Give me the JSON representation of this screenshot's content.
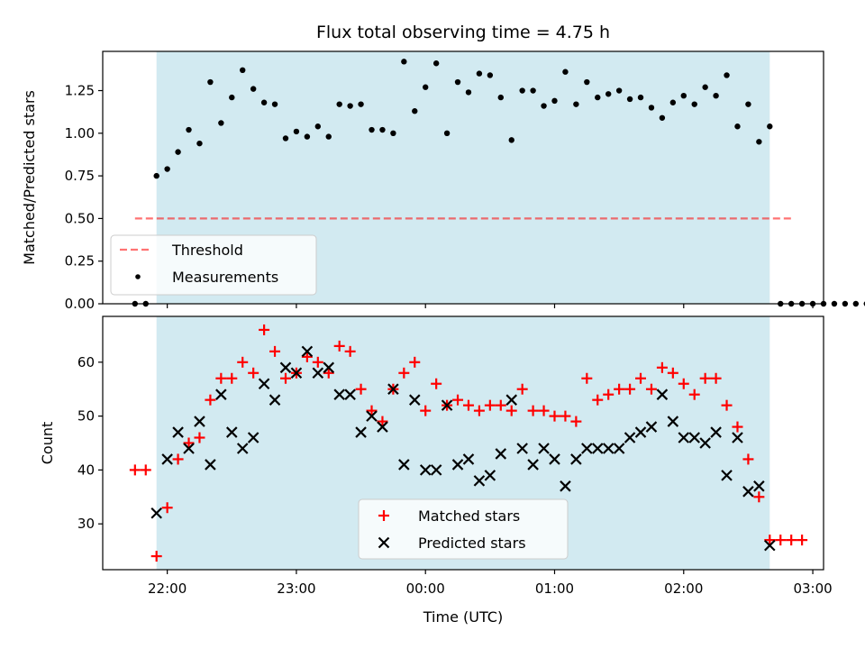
{
  "title": "Flux total observing time = 4.75 h",
  "xlabel": "Time (UTC)",
  "x_ticks": [
    "22:00",
    "23:00",
    "00:00",
    "01:00",
    "02:00",
    "03:00"
  ],
  "colors": {
    "span": "#add8e6",
    "threshold": "#ff0000",
    "measurements": "#000000",
    "matched": "#ff0000",
    "predicted": "#000000"
  },
  "chart_data": [
    {
      "type": "scatter",
      "ylabel": "Matched/Predicted stars",
      "y_ticks": [
        "0.00",
        "0.25",
        "0.50",
        "0.75",
        "1.00",
        "1.25"
      ],
      "ylim": [
        0,
        1.48
      ],
      "xlim": [
        "21:30",
        "03:05"
      ],
      "shaded_span": [
        "21:55",
        "02:40"
      ],
      "threshold": {
        "name": "Threshold",
        "y": 0.5,
        "x_range": [
          "21:45",
          "02:50"
        ],
        "style": "dashed"
      },
      "legend": {
        "placement": "lower-left",
        "entries": [
          "Threshold",
          "Measurements"
        ]
      },
      "series": [
        {
          "name": "Measurements",
          "x": [
            "21:45",
            "21:50",
            "21:55",
            "22:00",
            "22:05",
            "22:10",
            "22:15",
            "22:20",
            "22:25",
            "22:30",
            "22:35",
            "22:40",
            "22:45",
            "22:50",
            "22:55",
            "23:00",
            "23:05",
            "23:10",
            "23:15",
            "23:20",
            "23:25",
            "23:30",
            "23:35",
            "23:40",
            "23:45",
            "23:50",
            "23:55",
            "00:00",
            "00:05",
            "00:10",
            "00:15",
            "00:20",
            "00:25",
            "00:30",
            "00:35",
            "00:40",
            "00:45",
            "00:50",
            "00:55",
            "01:00",
            "01:05",
            "01:10",
            "01:15",
            "01:20",
            "01:25",
            "01:30",
            "01:35",
            "01:40",
            "01:45",
            "01:50",
            "01:55",
            "02:00",
            "02:05",
            "02:10",
            "02:15",
            "02:20",
            "02:25",
            "02:30",
            "02:35",
            "02:40",
            "02:45",
            "02:50",
            "02:55",
            "03:00",
            "03:05",
            "03:10",
            "03:15",
            "03:20",
            "03:25"
          ],
          "values": [
            0.0,
            0.0,
            0.75,
            0.79,
            0.89,
            1.02,
            0.94,
            1.3,
            1.06,
            1.21,
            1.37,
            1.26,
            1.18,
            1.17,
            0.97,
            1.01,
            0.98,
            1.04,
            0.98,
            1.17,
            1.16,
            1.17,
            1.02,
            1.02,
            1.0,
            1.42,
            1.13,
            1.27,
            1.41,
            1.0,
            1.3,
            1.24,
            1.35,
            1.34,
            1.21,
            0.96,
            1.25,
            1.25,
            1.16,
            1.19,
            1.36,
            1.17,
            1.3,
            1.21,
            1.23,
            1.25,
            1.2,
            1.21,
            1.15,
            1.09,
            1.18,
            1.22,
            1.17,
            1.27,
            1.22,
            1.34,
            1.04,
            1.17,
            0.95,
            1.04,
            0.0,
            0.0,
            0,
            0,
            0,
            0,
            0,
            0,
            0
          ]
        }
      ]
    },
    {
      "type": "scatter",
      "ylabel": "Count",
      "y_ticks": [
        "30",
        "40",
        "50",
        "60"
      ],
      "ylim": [
        21.5,
        68.5
      ],
      "xlim": [
        "21:30",
        "03:05"
      ],
      "shaded_span": [
        "21:55",
        "02:40"
      ],
      "legend": {
        "placement": "lower-center",
        "entries": [
          "Matched stars",
          "Predicted stars"
        ]
      },
      "series": [
        {
          "name": "Matched stars",
          "marker": "+",
          "x": [
            "21:45",
            "21:50",
            "21:55",
            "22:00",
            "22:05",
            "22:10",
            "22:15",
            "22:20",
            "22:25",
            "22:30",
            "22:35",
            "22:40",
            "22:45",
            "22:50",
            "22:55",
            "23:00",
            "23:05",
            "23:10",
            "23:15",
            "23:20",
            "23:25",
            "23:30",
            "23:35",
            "23:40",
            "23:45",
            "23:50",
            "23:55",
            "00:00",
            "00:05",
            "00:10",
            "00:15",
            "00:20",
            "00:25",
            "00:30",
            "00:35",
            "00:40",
            "00:45",
            "00:50",
            "00:55",
            "01:00",
            "01:05",
            "01:10",
            "01:15",
            "01:20",
            "01:25",
            "01:30",
            "01:35",
            "01:40",
            "01:45",
            "01:50",
            "01:55",
            "02:00",
            "02:05",
            "02:10",
            "02:15",
            "02:20",
            "02:25",
            "02:30",
            "02:35",
            "02:40",
            "02:45",
            "02:50",
            "02:55"
          ],
          "values": [
            40,
            40,
            24,
            33,
            42,
            45,
            46,
            53,
            57,
            57,
            60,
            58,
            66,
            62,
            57,
            58,
            61,
            60,
            58,
            63,
            62,
            55,
            51,
            49,
            55,
            58,
            60,
            51,
            56,
            52,
            53,
            52,
            51,
            52,
            52,
            51,
            55,
            51,
            51,
            50,
            50,
            49,
            57,
            53,
            54,
            55,
            55,
            57,
            55,
            59,
            58,
            56,
            54,
            57,
            57,
            52,
            48,
            42,
            35,
            27,
            27,
            27,
            27
          ]
        },
        {
          "name": "Predicted stars",
          "marker": "x",
          "x": [
            "21:55",
            "22:00",
            "22:05",
            "22:10",
            "22:15",
            "22:20",
            "22:25",
            "22:30",
            "22:35",
            "22:40",
            "22:45",
            "22:50",
            "22:55",
            "23:00",
            "23:05",
            "23:10",
            "23:15",
            "23:20",
            "23:25",
            "23:30",
            "23:35",
            "23:40",
            "23:45",
            "23:50",
            "23:55",
            "00:00",
            "00:05",
            "00:10",
            "00:15",
            "00:20",
            "00:25",
            "00:30",
            "00:35",
            "00:40",
            "00:45",
            "00:50",
            "00:55",
            "01:00",
            "01:05",
            "01:10",
            "01:15",
            "01:20",
            "01:25",
            "01:30",
            "01:35",
            "01:40",
            "01:45",
            "01:50",
            "01:55",
            "02:00",
            "02:05",
            "02:10",
            "02:15",
            "02:20",
            "02:25",
            "02:30",
            "02:35",
            "02:40"
          ],
          "values": [
            32,
            42,
            47,
            44,
            49,
            41,
            54,
            47,
            44,
            46,
            56,
            53,
            59,
            58,
            62,
            58,
            59,
            54,
            54,
            47,
            50,
            48,
            55,
            41,
            53,
            40,
            40,
            52,
            41,
            42,
            38,
            39,
            43,
            53,
            44,
            41,
            44,
            42,
            37,
            42,
            44,
            44,
            44,
            44,
            46,
            47,
            48,
            54,
            49,
            46,
            46,
            45,
            47,
            39,
            46,
            36,
            37,
            26
          ]
        }
      ]
    }
  ]
}
